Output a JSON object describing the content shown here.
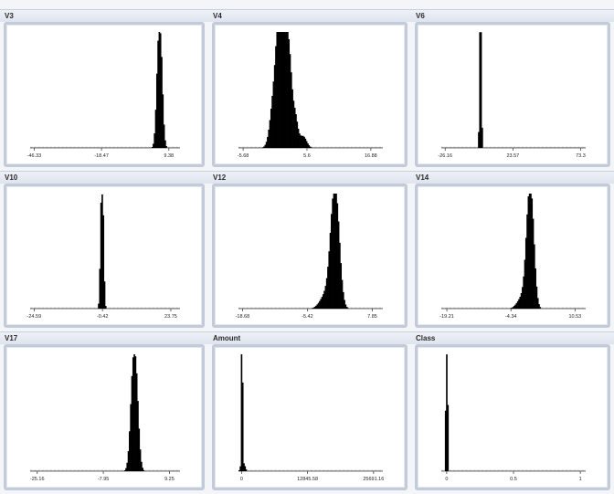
{
  "colors": {
    "bars": "#000000",
    "axis": "#444444",
    "frame": "#c3cad8",
    "background": "#f4f5f8"
  },
  "chart_data": [
    {
      "type": "bar",
      "title": "V3",
      "ticks": [
        "-46.33",
        "-18.47",
        "9.38"
      ],
      "tick_values": [
        -46.33,
        -18.47,
        9.38
      ],
      "xlim": [
        -48,
        14
      ],
      "peaks": [
        {
          "center": 5.5,
          "width": 0.9,
          "height": 1.0
        }
      ]
    },
    {
      "type": "bar",
      "title": "V4",
      "ticks": [
        "-5.68",
        "5.6",
        "16.88"
      ],
      "tick_values": [
        -5.68,
        5.6,
        16.88
      ],
      "xlim": [
        -6.5,
        19
      ],
      "peaks": [
        {
          "center": 1.6,
          "width": 0.45,
          "height": 0.98
        },
        {
          "center": 0.8,
          "width": 0.5,
          "height": 0.82
        },
        {
          "center": 2.4,
          "width": 0.4,
          "height": 0.6
        },
        {
          "center": 0.0,
          "width": 0.7,
          "height": 0.5
        },
        {
          "center": 3.3,
          "width": 0.5,
          "height": 0.3
        },
        {
          "center": 4.8,
          "width": 0.6,
          "height": 0.1
        }
      ]
    },
    {
      "type": "bar",
      "title": "V6",
      "ticks": [
        "-26.16",
        "23.57",
        "73.3"
      ],
      "tick_values": [
        -26.16,
        23.57,
        73.3
      ],
      "xlim": [
        -29,
        77
      ],
      "peaks": [
        {
          "center": -0.3,
          "width": 0.45,
          "height": 1.0
        }
      ]
    },
    {
      "type": "bar",
      "title": "V10",
      "ticks": [
        "-24.59",
        "-0.42",
        "23.75"
      ],
      "tick_values": [
        -24.59,
        -0.42,
        23.75
      ],
      "xlim": [
        -26,
        27
      ],
      "peaks": [
        {
          "center": -0.6,
          "width": 0.4,
          "height": 1.0
        }
      ]
    },
    {
      "type": "bar",
      "title": "V12",
      "ticks": [
        "-18.68",
        "-5.42",
        "7.85"
      ],
      "tick_values": [
        -18.68,
        -5.42,
        7.85
      ],
      "xlim": [
        -19.5,
        10
      ],
      "peaks": [
        {
          "center": 0.2,
          "width": 0.8,
          "height": 1.0
        },
        {
          "center": -1.6,
          "width": 1.1,
          "height": 0.12
        }
      ]
    },
    {
      "type": "bar",
      "title": "V14",
      "ticks": [
        "-19.21",
        "-4.34",
        "10.53"
      ],
      "tick_values": [
        -19.21,
        -4.34,
        10.53
      ],
      "xlim": [
        -20.5,
        13
      ],
      "peaks": [
        {
          "center": 0.1,
          "width": 0.75,
          "height": 1.0
        },
        {
          "center": -1.6,
          "width": 1.1,
          "height": 0.1
        }
      ]
    },
    {
      "type": "bar",
      "title": "V17",
      "ticks": [
        "-25.16",
        "-7.95",
        "9.25"
      ],
      "tick_values": [
        -25.16,
        -7.95,
        9.25
      ],
      "xlim": [
        -27,
        12
      ],
      "peaks": [
        {
          "center": 0.1,
          "width": 0.75,
          "height": 1.0
        }
      ]
    },
    {
      "type": "bar",
      "title": "Amount",
      "ticks": [
        "0",
        "12845.58",
        "25691.16"
      ],
      "tick_values": [
        0,
        12845.58,
        25691.16
      ],
      "xlim": [
        -600,
        27500
      ],
      "peaks": [
        {
          "center": 40,
          "width": 60,
          "height": 1.0
        },
        {
          "center": 250,
          "width": 300,
          "height": 0.07
        }
      ]
    },
    {
      "type": "bar",
      "title": "Class",
      "ticks": [
        "0",
        "0.5",
        "1"
      ],
      "tick_values": [
        0,
        0.5,
        1
      ],
      "xlim": [
        -0.04,
        1.04
      ],
      "peaks": [
        {
          "center": 0,
          "width": 0.004,
          "height": 1.0
        }
      ]
    }
  ]
}
